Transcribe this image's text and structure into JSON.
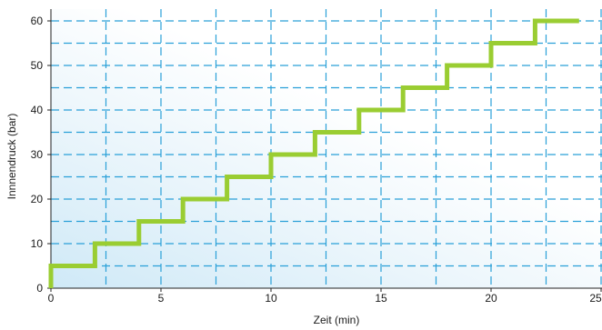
{
  "chart_data": {
    "type": "line",
    "title": "",
    "xlabel": "Zeit (min)",
    "ylabel": "Innnendruck (bar)",
    "xlim": [
      0,
      25
    ],
    "ylim": [
      0,
      62
    ],
    "x_ticks": [
      0,
      5,
      10,
      15,
      20,
      25
    ],
    "y_ticks": [
      0,
      10,
      20,
      30,
      40,
      50,
      60
    ],
    "x_tick_labels": [
      "0",
      "5",
      "10",
      "15",
      "20",
      "25"
    ],
    "y_tick_labels": [
      "0",
      "10",
      "20",
      "30",
      "40",
      "50",
      "60"
    ],
    "grid": "dashed, major every 5 bar / 5 min, minor every 5 bar / 2.5 min",
    "background": "light blue gradient fading toward the upper right",
    "series": [
      {
        "color": "#9acd32",
        "style": "step",
        "x": [
          0,
          0,
          2,
          2,
          4,
          4,
          6,
          6,
          8,
          8,
          10,
          10,
          12,
          12,
          14,
          14,
          16,
          16,
          18,
          18,
          20,
          20,
          22,
          22,
          24
        ],
        "y": [
          0,
          5,
          5,
          10,
          10,
          15,
          15,
          20,
          20,
          25,
          25,
          30,
          30,
          35,
          35,
          40,
          40,
          45,
          45,
          50,
          50,
          55,
          55,
          60,
          60
        ]
      }
    ]
  }
}
